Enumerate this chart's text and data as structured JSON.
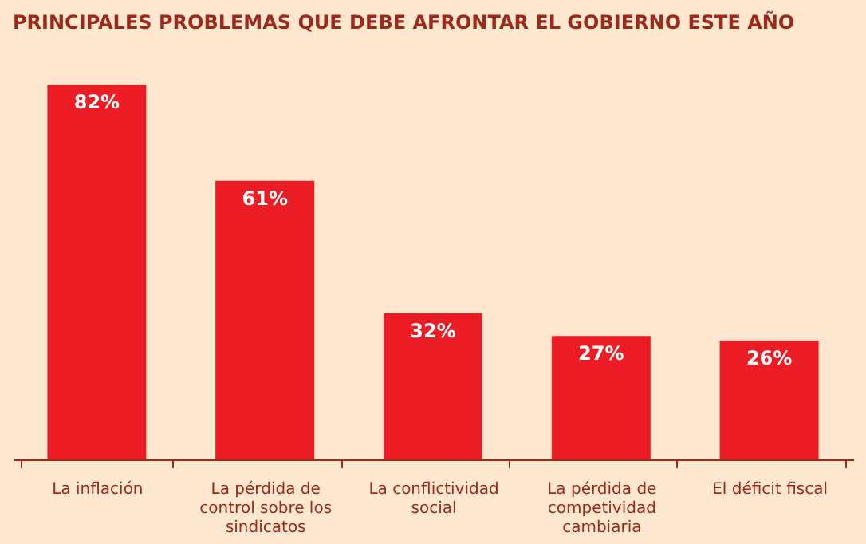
{
  "chart_data": {
    "type": "bar",
    "title": "PRINCIPALES PROBLEMAS QUE DEBE AFRONTAR EL GOBIERNO ESTE AÑO",
    "categories": [
      "La inflación",
      "La pérdida de control sobre los sindicatos",
      "La conflictividad social",
      "La pérdida de competividad cambiaria",
      "El déficit fiscal"
    ],
    "values": [
      82,
      61,
      32,
      27,
      26
    ],
    "value_labels": [
      "82%",
      "61%",
      "32%",
      "27%",
      "26%"
    ],
    "color": "#ec1c24",
    "grid": false
  }
}
